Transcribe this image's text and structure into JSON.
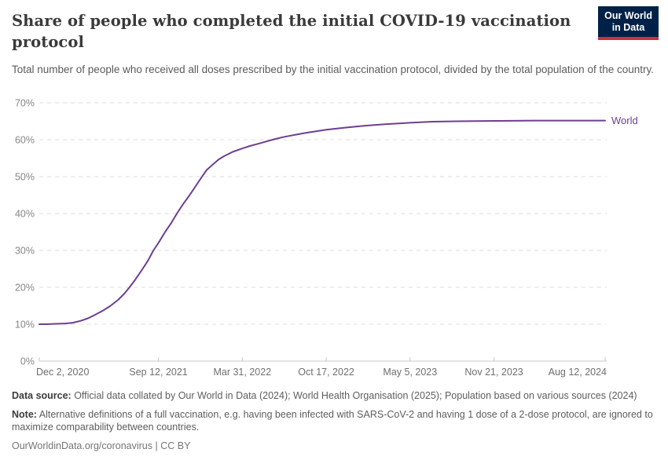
{
  "header": {
    "title": "Share of people who completed the initial COVID-19 vaccination protocol",
    "subtitle": "Total number of people who received all doses prescribed by the initial vaccination protocol, divided by the total population of the country.",
    "logo": {
      "line1": "Our World",
      "line2": "in Data",
      "bg_color": "#002147",
      "accent_color": "#c8303c"
    }
  },
  "chart_data": {
    "type": "line",
    "title": "Share of people who completed the initial COVID-19 vaccination protocol",
    "xlabel": "",
    "ylabel": "",
    "x_range": [
      "2020-12-02",
      "2024-08-12"
    ],
    "ylim": [
      0,
      70
    ],
    "grid": "horizontal-dashed",
    "legend_position": "end-of-line",
    "y_tick_format": "percent",
    "y_ticks": [
      {
        "value": 0,
        "label": "0%"
      },
      {
        "value": 10,
        "label": "10%"
      },
      {
        "value": 20,
        "label": "20%"
      },
      {
        "value": 30,
        "label": "30%"
      },
      {
        "value": 40,
        "label": "40%"
      },
      {
        "value": 50,
        "label": "50%"
      },
      {
        "value": 60,
        "label": "60%"
      },
      {
        "value": 70,
        "label": "70%"
      }
    ],
    "x_ticks": [
      {
        "date": "2020-12-02",
        "label": "Dec 2, 2020"
      },
      {
        "date": "2021-09-12",
        "label": "Sep 12, 2021"
      },
      {
        "date": "2022-03-31",
        "label": "Mar 31, 2022"
      },
      {
        "date": "2022-10-17",
        "label": "Oct 17, 2022"
      },
      {
        "date": "2023-05-05",
        "label": "May 5, 2023"
      },
      {
        "date": "2023-11-21",
        "label": "Nov 21, 2023"
      },
      {
        "date": "2024-08-12",
        "label": "Aug 12, 2024"
      }
    ],
    "series": [
      {
        "name": "World",
        "color": "#6d3e91",
        "points": [
          [
            "2020-12-02",
            10.0
          ],
          [
            "2020-12-20",
            10.0
          ],
          [
            "2021-01-10",
            10.1
          ],
          [
            "2021-02-01",
            10.2
          ],
          [
            "2021-02-20",
            10.4
          ],
          [
            "2021-03-10",
            10.9
          ],
          [
            "2021-03-28",
            11.6
          ],
          [
            "2021-04-15",
            12.6
          ],
          [
            "2021-05-03",
            13.7
          ],
          [
            "2021-05-21",
            15.0
          ],
          [
            "2021-06-08",
            16.6
          ],
          [
            "2021-06-22",
            18.2
          ],
          [
            "2021-07-05",
            20.0
          ],
          [
            "2021-07-19",
            22.1
          ],
          [
            "2021-08-03",
            24.6
          ],
          [
            "2021-08-18",
            27.2
          ],
          [
            "2021-08-31",
            30.0
          ],
          [
            "2021-09-13",
            32.2
          ],
          [
            "2021-09-28",
            35.0
          ],
          [
            "2021-10-13",
            37.5
          ],
          [
            "2021-10-26",
            40.0
          ],
          [
            "2021-11-10",
            42.6
          ],
          [
            "2021-11-23",
            44.6
          ],
          [
            "2021-12-08",
            47.1
          ],
          [
            "2021-12-25",
            50.0
          ],
          [
            "2022-01-05",
            51.8
          ],
          [
            "2022-01-18",
            53.1
          ],
          [
            "2022-02-02",
            54.6
          ],
          [
            "2022-02-15",
            55.5
          ],
          [
            "2022-03-08",
            56.7
          ],
          [
            "2022-03-30",
            57.6
          ],
          [
            "2022-04-18",
            58.3
          ],
          [
            "2022-05-11",
            59.0
          ],
          [
            "2022-05-29",
            59.6
          ],
          [
            "2022-06-17",
            60.2
          ],
          [
            "2022-07-06",
            60.7
          ],
          [
            "2022-07-24",
            61.1
          ],
          [
            "2022-08-31",
            61.9
          ],
          [
            "2022-10-17",
            62.7
          ],
          [
            "2022-12-03",
            63.3
          ],
          [
            "2023-01-18",
            63.8
          ],
          [
            "2023-03-06",
            64.2
          ],
          [
            "2023-05-05",
            64.6
          ],
          [
            "2023-06-27",
            64.9
          ],
          [
            "2023-08-22",
            65.0
          ],
          [
            "2023-11-22",
            65.1
          ],
          [
            "2024-02-25",
            65.2
          ],
          [
            "2024-05-29",
            65.2
          ],
          [
            "2024-08-12",
            65.2
          ]
        ]
      }
    ]
  },
  "footer": {
    "data_source_label": "Data source:",
    "data_source_text": " Official data collated by Our World in Data (2024); World Health Organisation (2025); Population based on various sources (2024)",
    "note_label": "Note:",
    "note_text": " Alternative definitions of a full vaccination, e.g. having been infected with SARS-CoV-2 and having 1 dose of a 2-dose protocol, are ignored to maximize comparability between countries.",
    "link_text": "OurWorldinData.org/coronavirus",
    "separator": "|",
    "license": "CC BY"
  },
  "colors": {
    "line_world": "#6d3e91",
    "grid": "#dedede",
    "axis": "#c8c8c8",
    "y_tick_text": "#868686",
    "x_tick_text": "#6e6e6e",
    "title_text": "#3a3a3a",
    "subtitle_text": "#5b5b5b",
    "logo_bg": "#002147",
    "logo_accent": "#c8303c"
  }
}
